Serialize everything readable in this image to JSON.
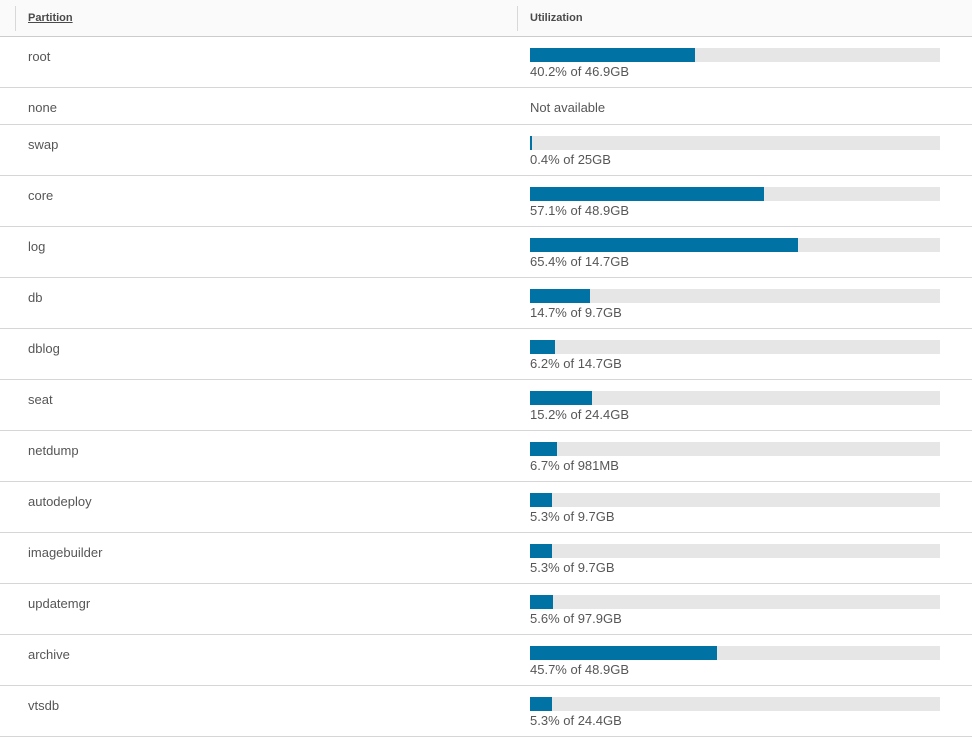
{
  "header": {
    "partition_label": "Partition",
    "utilization_label": "Utilization"
  },
  "colors": {
    "bar_fill": "#0072a3",
    "bar_track": "#e6e6e6"
  },
  "rows": [
    {
      "name": "root",
      "percent": 40.2,
      "label": "40.2% of 46.9GB"
    },
    {
      "name": "none",
      "percent": null,
      "label": "Not available"
    },
    {
      "name": "swap",
      "percent": 0.4,
      "label": "0.4% of 25GB"
    },
    {
      "name": "core",
      "percent": 57.1,
      "label": "57.1% of 48.9GB"
    },
    {
      "name": "log",
      "percent": 65.4,
      "label": "65.4% of 14.7GB"
    },
    {
      "name": "db",
      "percent": 14.7,
      "label": "14.7% of 9.7GB"
    },
    {
      "name": "dblog",
      "percent": 6.2,
      "label": "6.2% of 14.7GB"
    },
    {
      "name": "seat",
      "percent": 15.2,
      "label": "15.2% of 24.4GB"
    },
    {
      "name": "netdump",
      "percent": 6.7,
      "label": "6.7% of 981MB"
    },
    {
      "name": "autodeploy",
      "percent": 5.3,
      "label": "5.3% of 9.7GB"
    },
    {
      "name": "imagebuilder",
      "percent": 5.3,
      "label": "5.3% of 9.7GB"
    },
    {
      "name": "updatemgr",
      "percent": 5.6,
      "label": "5.6% of 97.9GB"
    },
    {
      "name": "archive",
      "percent": 45.7,
      "label": "45.7% of 48.9GB"
    },
    {
      "name": "vtsdb",
      "percent": 5.3,
      "label": "5.3% of 24.4GB"
    }
  ]
}
